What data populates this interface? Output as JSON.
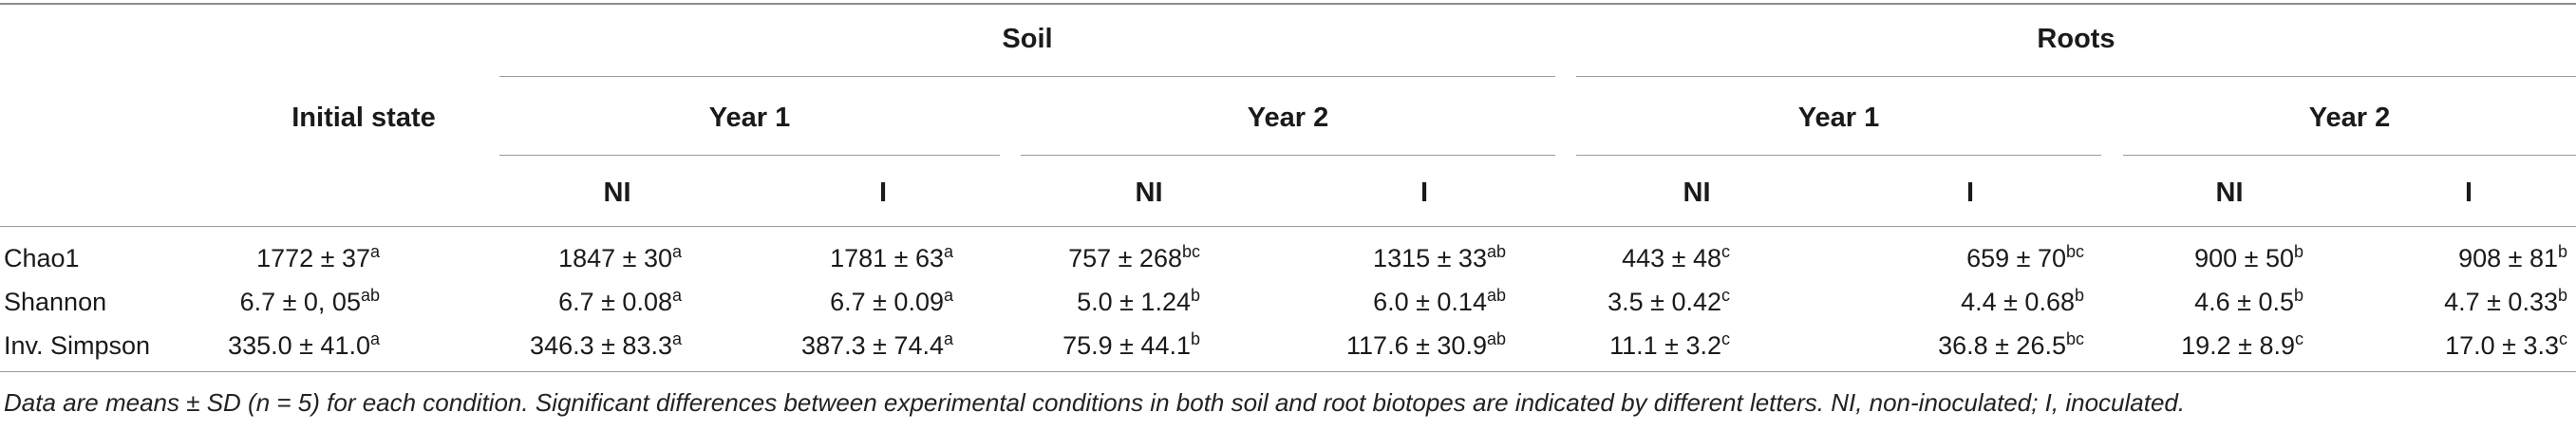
{
  "table": {
    "group_headers": {
      "soil": "Soil",
      "roots": "Roots"
    },
    "initial_header": "Initial state",
    "year_headers": [
      "Year 1",
      "Year 2",
      "Year 1",
      "Year 2"
    ],
    "treatment_headers": [
      "NI",
      "I",
      "NI",
      "I",
      "NI",
      "I",
      "NI",
      "I"
    ],
    "rows": [
      {
        "label": "Chao1",
        "cells": [
          {
            "v": "1772 ± 37",
            "s": "a"
          },
          {
            "v": "1847 ± 30",
            "s": "a"
          },
          {
            "v": "1781 ± 63",
            "s": "a"
          },
          {
            "v": "757 ± 268",
            "s": "bc"
          },
          {
            "v": "1315 ± 33",
            "s": "ab"
          },
          {
            "v": "443 ± 48",
            "s": "c"
          },
          {
            "v": "659 ± 70",
            "s": "bc"
          },
          {
            "v": "900 ± 50",
            "s": "b"
          },
          {
            "v": "908 ± 81",
            "s": "b"
          }
        ]
      },
      {
        "label": "Shannon",
        "cells": [
          {
            "v": "6.7 ± 0, 05",
            "s": "ab"
          },
          {
            "v": "6.7 ± 0.08",
            "s": "a"
          },
          {
            "v": "6.7 ± 0.09",
            "s": "a"
          },
          {
            "v": "5.0 ± 1.24",
            "s": "b"
          },
          {
            "v": "6.0 ± 0.14",
            "s": "ab"
          },
          {
            "v": "3.5 ± 0.42",
            "s": "c"
          },
          {
            "v": "4.4 ± 0.68",
            "s": "b"
          },
          {
            "v": "4.6 ± 0.5",
            "s": "b"
          },
          {
            "v": "4.7 ± 0.33",
            "s": "b"
          }
        ]
      },
      {
        "label": "Inv. Simpson",
        "cells": [
          {
            "v": "335.0 ± 41.0",
            "s": "a"
          },
          {
            "v": "346.3 ± 83.3",
            "s": "a"
          },
          {
            "v": "387.3 ± 74.4",
            "s": "a"
          },
          {
            "v": "75.9 ± 44.1",
            "s": "b"
          },
          {
            "v": "117.6 ± 30.9",
            "s": "ab"
          },
          {
            "v": "11.1 ± 3.2",
            "s": "c"
          },
          {
            "v": "36.8 ± 26.5",
            "s": "bc"
          },
          {
            "v": "19.2 ± 8.9",
            "s": "c"
          },
          {
            "v": "17.0 ± 3.3",
            "s": "c"
          }
        ]
      }
    ],
    "footnote": "Data are means ± SD (n = 5) for each condition. Significant differences between experimental conditions in both soil and root biotopes are indicated by different letters. NI, non-inoculated; I, inoculated."
  }
}
